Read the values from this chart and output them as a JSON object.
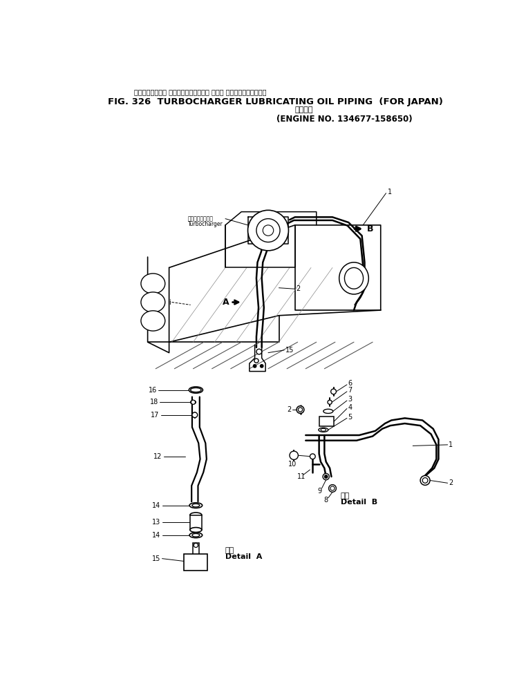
{
  "title_jp": "ターボチャージャ ルーブリケーティング オイル パイピング　　国内向",
  "title_en": "FIG. 326  TURBOCHARGER LUBRICATING OIL PIPING  (FOR JAPAN)",
  "subtitle_jp": "適用号機",
  "subtitle_en": "(ENGINE NO. 134677-158650)",
  "bg": "#ffffff",
  "lc": "#000000",
  "fig_w": 7.48,
  "fig_h": 9.83,
  "dpi": 100
}
